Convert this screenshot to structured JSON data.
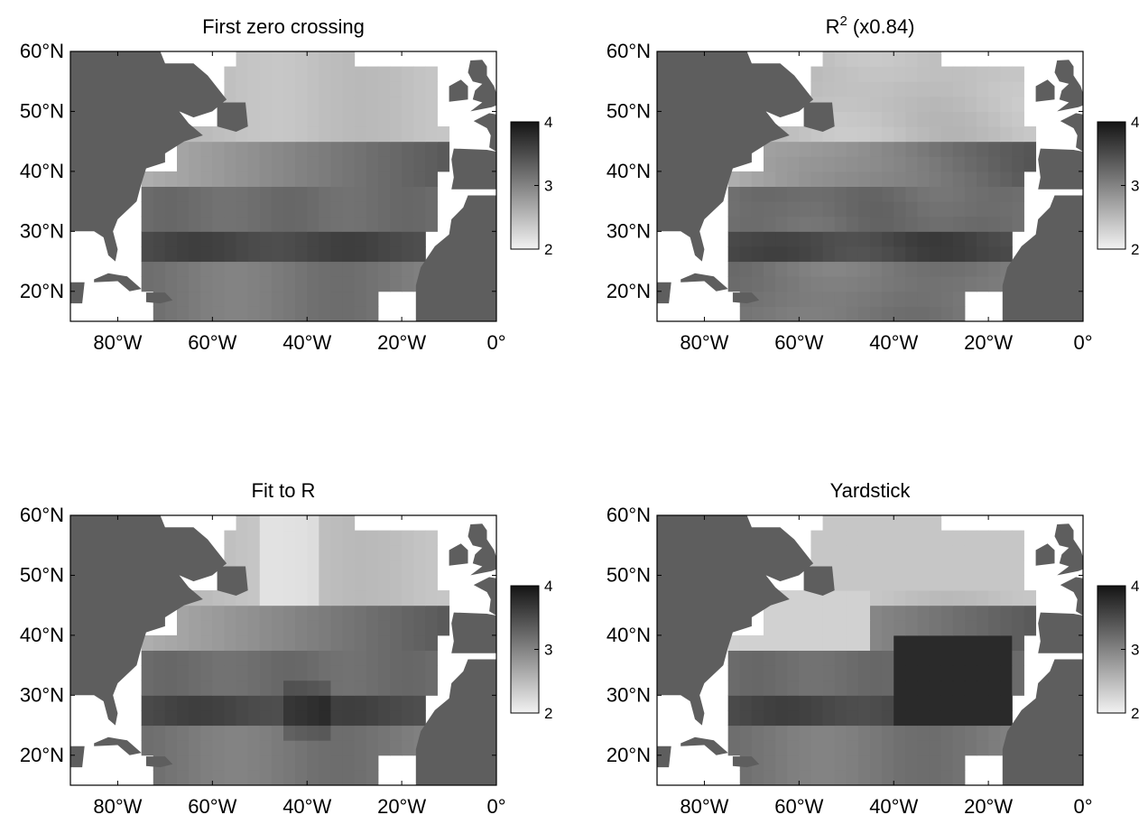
{
  "chart_data": [
    {
      "type": "heatmap",
      "title": "First zero crossing",
      "title_base": "",
      "title_sup": "",
      "ylabels": [
        "60°N",
        "50°N",
        "40°N",
        "30°N",
        "20°N"
      ],
      "xlabels": [
        "80°W",
        "60°W",
        "40°W",
        "20°W",
        "0°"
      ],
      "x_ticks": [
        -80,
        -60,
        -40,
        -20,
        0
      ],
      "y_ticks": [
        60,
        50,
        40,
        30,
        20
      ],
      "xlim": [
        -90,
        0
      ],
      "ylim": [
        15,
        60
      ],
      "colorbar": {
        "min": 2,
        "max": 4,
        "ticks": [
          "4",
          "3",
          "2"
        ]
      },
      "grid_origin": {
        "lon": -75,
        "lat": 20
      },
      "cell_deg": 2.5,
      "grid": [
        "..........AAAAAAAAAAA.....",
        "..........AAAAAAAAAAA.....",
        "........GGHJJJIHGHHHH.....",
        "........GHIJKKLLLKKHFG....",
        "......................GD....",
        "JJIIIHGGGHIJJKJJIHH.......",
        "IHHGGFGFFFEEEEFFFGFE......",
        "EEDDCCCCCCCCCDDDEEFG......",
        "DDDCBBAAAABBBBCCDEEFFG....",
        ".....DCCCCBBCDDDDDEEEE....",
        ".....EEFFGGHIJKKLLLKKJ....",
        ".......FFFGGHHHIIIIIHG....",
        ".......DEEEFGGGGHGGEEE....",
        "........FGFEDDEFGGHHH.....",
        "........GGEEEEEFFFF.......",
        "..........HHGGGHH.........",
        "..........IHHGGG.........."
      ],
      "levels": [
        2.2,
        2.35,
        2.5,
        2.65,
        2.8,
        2.95,
        3.05,
        3.15,
        3.25,
        3.35,
        3.45,
        3.55,
        3.65
      ]
    },
    {
      "type": "heatmap",
      "title": "",
      "title_base": "R",
      "title_sup": "2",
      "title_rest": " (x0.84)",
      "ylabels": [
        "60°N",
        "50°N",
        "40°N",
        "30°N",
        "20°N"
      ],
      "xlabels": [
        "80°W",
        "60°W",
        "40°W",
        "20°W",
        "0°"
      ],
      "x_ticks": [
        -80,
        -60,
        -40,
        -20,
        0
      ],
      "y_ticks": [
        60,
        50,
        40,
        30,
        20
      ],
      "xlim": [
        -90,
        0
      ],
      "ylim": [
        15,
        60
      ],
      "colorbar": {
        "min": 2,
        "max": 4,
        "ticks": [
          "4",
          "3",
          "2"
        ]
      },
      "grid_origin": {
        "lon": -75,
        "lat": 20
      },
      "cell_deg": 2.5
    },
    {
      "type": "heatmap",
      "title": "Fit to R",
      "title_base": "",
      "title_sup": "",
      "ylabels": [
        "60°N",
        "50°N",
        "40°N",
        "30°N",
        "20°N"
      ],
      "xlabels": [
        "80°W",
        "60°W",
        "40°W",
        "20°W",
        "0°"
      ],
      "x_ticks": [
        -80,
        -60,
        -40,
        -20,
        0
      ],
      "y_ticks": [
        60,
        50,
        40,
        30,
        20
      ],
      "xlim": [
        -90,
        0
      ],
      "ylim": [
        15,
        60
      ],
      "colorbar": {
        "min": 2,
        "max": 4,
        "ticks": [
          "4",
          "3",
          "2"
        ]
      },
      "grid_origin": {
        "lon": -75,
        "lat": 20
      },
      "cell_deg": 2.5
    },
    {
      "type": "heatmap",
      "title": "Yardstick",
      "title_base": "",
      "title_sup": "",
      "ylabels": [
        "60°N",
        "50°N",
        "40°N",
        "30°N",
        "20°N"
      ],
      "xlabels": [
        "80°W",
        "60°W",
        "40°W",
        "20°W",
        "0°"
      ],
      "x_ticks": [
        -80,
        -60,
        -40,
        -20,
        0
      ],
      "y_ticks": [
        60,
        50,
        40,
        30,
        20
      ],
      "xlim": [
        -90,
        0
      ],
      "ylim": [
        15,
        60
      ],
      "colorbar": {
        "min": 2,
        "max": 4,
        "ticks": [
          "4",
          "3",
          "2"
        ]
      },
      "grid_origin": {
        "lon": -75,
        "lat": 20
      },
      "cell_deg": 2.5
    }
  ],
  "colors": {
    "land": "#5e5e5e",
    "background": "#ffffff",
    "frame": "#000000"
  }
}
